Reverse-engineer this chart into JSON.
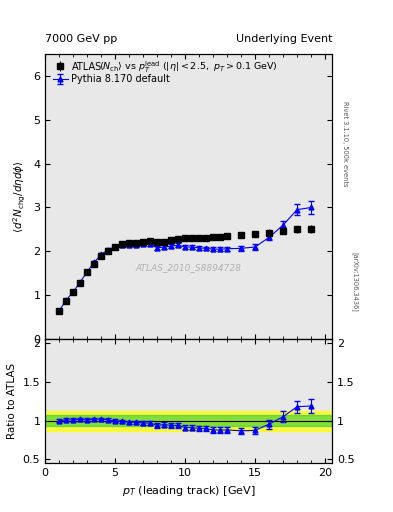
{
  "title_left": "7000 GeV pp",
  "title_right": "Underlying Event",
  "xlabel": "p_{T} (leading track) [GeV]",
  "ylabel_main": "<d^2 N_{chg}/d eta d phi>",
  "ylabel_ratio": "Ratio to ATLAS",
  "right_label": "Rivet 3.1.10, 500k events",
  "right_label2": "[arXiv:1306.3436]",
  "watermark": "ATLAS_2010_S8894728",
  "atlas_pt": [
    1.0,
    1.5,
    2.0,
    2.5,
    3.0,
    3.5,
    4.0,
    4.5,
    5.0,
    5.5,
    6.0,
    6.5,
    7.0,
    7.5,
    8.0,
    8.5,
    9.0,
    9.5,
    10.0,
    10.5,
    11.0,
    11.5,
    12.0,
    12.5,
    13.0,
    14.0,
    15.0,
    16.0,
    17.0,
    18.0,
    19.0
  ],
  "atlas_y": [
    0.65,
    0.88,
    1.07,
    1.28,
    1.52,
    1.72,
    1.9,
    2.02,
    2.1,
    2.16,
    2.18,
    2.2,
    2.22,
    2.24,
    2.22,
    2.22,
    2.25,
    2.28,
    2.3,
    2.3,
    2.3,
    2.3,
    2.32,
    2.32,
    2.35,
    2.38,
    2.4,
    2.43,
    2.47,
    2.5,
    2.52
  ],
  "atlas_yerr": [
    0.03,
    0.04,
    0.04,
    0.05,
    0.05,
    0.05,
    0.05,
    0.06,
    0.06,
    0.06,
    0.06,
    0.06,
    0.06,
    0.06,
    0.06,
    0.06,
    0.06,
    0.06,
    0.06,
    0.06,
    0.06,
    0.06,
    0.06,
    0.06,
    0.07,
    0.07,
    0.07,
    0.08,
    0.08,
    0.08,
    0.09
  ],
  "pythia_pt": [
    1.0,
    1.5,
    2.0,
    2.5,
    3.0,
    3.5,
    4.0,
    4.5,
    5.0,
    5.5,
    6.0,
    6.5,
    7.0,
    7.5,
    8.0,
    8.5,
    9.0,
    9.5,
    10.0,
    10.5,
    11.0,
    11.5,
    12.0,
    12.5,
    13.0,
    14.0,
    15.0,
    16.0,
    17.0,
    18.0,
    19.0
  ],
  "pythia_y": [
    0.65,
    0.89,
    1.08,
    1.3,
    1.54,
    1.75,
    1.93,
    2.04,
    2.1,
    2.14,
    2.14,
    2.15,
    2.16,
    2.17,
    2.08,
    2.1,
    2.12,
    2.14,
    2.1,
    2.1,
    2.08,
    2.07,
    2.05,
    2.05,
    2.06,
    2.07,
    2.1,
    2.32,
    2.6,
    2.95,
    3.0
  ],
  "pythia_yerr": [
    0.02,
    0.02,
    0.02,
    0.02,
    0.03,
    0.03,
    0.03,
    0.04,
    0.04,
    0.04,
    0.04,
    0.04,
    0.04,
    0.04,
    0.04,
    0.04,
    0.04,
    0.04,
    0.04,
    0.04,
    0.04,
    0.04,
    0.04,
    0.04,
    0.05,
    0.05,
    0.06,
    0.07,
    0.09,
    0.12,
    0.15
  ],
  "ratio_y": [
    1.0,
    1.01,
    1.01,
    1.02,
    1.01,
    1.02,
    1.02,
    1.01,
    1.0,
    0.99,
    0.98,
    0.98,
    0.97,
    0.97,
    0.94,
    0.95,
    0.94,
    0.94,
    0.91,
    0.91,
    0.9,
    0.9,
    0.88,
    0.88,
    0.88,
    0.87,
    0.875,
    0.955,
    1.052,
    1.18,
    1.19
  ],
  "ratio_yerr": [
    0.02,
    0.02,
    0.02,
    0.02,
    0.02,
    0.02,
    0.02,
    0.02,
    0.02,
    0.02,
    0.02,
    0.02,
    0.02,
    0.02,
    0.03,
    0.03,
    0.03,
    0.03,
    0.03,
    0.03,
    0.03,
    0.03,
    0.04,
    0.04,
    0.04,
    0.04,
    0.05,
    0.06,
    0.07,
    0.08,
    0.09
  ],
  "band_green_lo": 0.93,
  "band_green_hi": 1.07,
  "band_yellow_lo": 0.87,
  "band_yellow_hi": 1.13,
  "xlim": [
    0.5,
    20.5
  ],
  "ylim_main": [
    0.0,
    6.5
  ],
  "ylim_ratio": [
    0.45,
    2.05
  ],
  "atlas_color": "black",
  "pythia_color": "blue",
  "plot_bg": "#e8e8e8"
}
